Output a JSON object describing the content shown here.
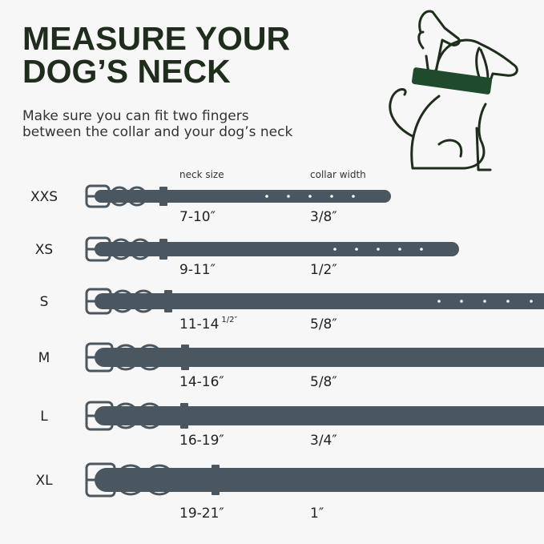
{
  "header": {
    "title": [
      "MEASURE YOUR",
      "DOG’S  NECK"
    ],
    "subtitle": [
      "Make sure you can fit two fingers",
      "between the collar and your dog’s neck"
    ]
  },
  "columns": {
    "neck": "neck size",
    "width": "collar width"
  },
  "sizes": [
    {
      "label": "XXS",
      "neck": "7-10″",
      "width": "3/8″"
    },
    {
      "label": "XS",
      "neck": "9-11″",
      "width": "1/2″"
    },
    {
      "label": "S",
      "neck": "11-14",
      "neck_fraction": "1/2″",
      "width": "5/8″"
    },
    {
      "label": "M",
      "neck": "14-16″",
      "width": "5/8″"
    },
    {
      "label": "L",
      "neck": "16-19″",
      "width": "3/4″"
    },
    {
      "label": "XL",
      "neck": "19-21″",
      "width": "1″"
    }
  ]
}
